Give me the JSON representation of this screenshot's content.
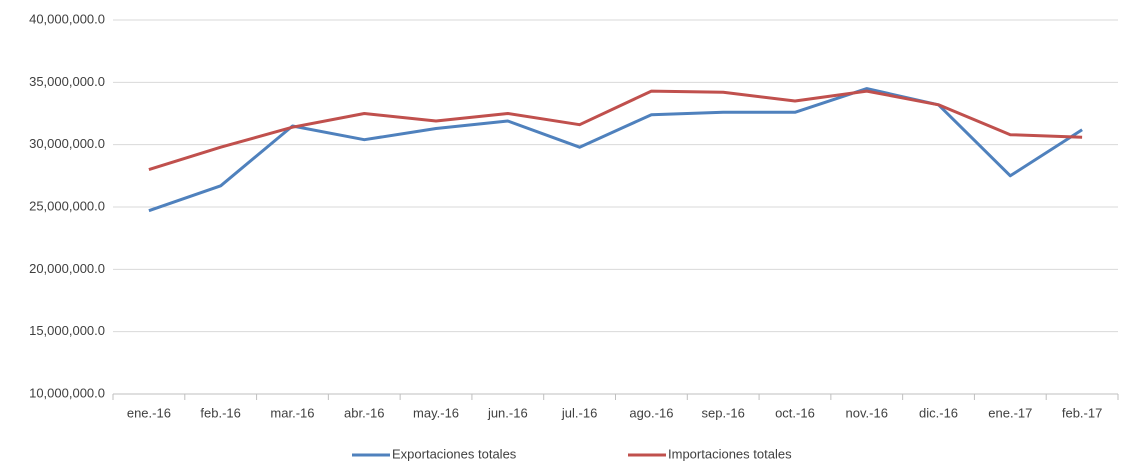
{
  "chart_data": {
    "type": "line",
    "categories": [
      "ene.-16",
      "feb.-16",
      "mar.-16",
      "abr.-16",
      "may.-16",
      "jun.-16",
      "jul.-16",
      "ago.-16",
      "sep.-16",
      "oct.-16",
      "nov.-16",
      "dic.-16",
      "ene.-17",
      "feb.-17"
    ],
    "series": [
      {
        "name": "Exportaciones totales",
        "color": "#4f81bd",
        "values": [
          24700000,
          26700000,
          31500000,
          30400000,
          31300000,
          31900000,
          29800000,
          32400000,
          32600000,
          32600000,
          34500000,
          33200000,
          27500000,
          31200000
        ]
      },
      {
        "name": "Importaciones totales",
        "color": "#c0504d",
        "values": [
          28000000,
          29800000,
          31400000,
          32500000,
          31900000,
          32500000,
          31600000,
          34300000,
          34200000,
          33500000,
          34300000,
          33200000,
          30800000,
          30600000
        ]
      }
    ],
    "ylim": [
      10000000,
      40000000
    ],
    "yticks": [
      {
        "value": 10000000,
        "label": "10,000,000.0"
      },
      {
        "value": 15000000,
        "label": "15,000,000.0"
      },
      {
        "value": 20000000,
        "label": "20,000,000.0"
      },
      {
        "value": 25000000,
        "label": "25,000,000.0"
      },
      {
        "value": 30000000,
        "label": "30,000,000.0"
      },
      {
        "value": 35000000,
        "label": "35,000,000.0"
      },
      {
        "value": 40000000,
        "label": "40,000,000.0"
      }
    ],
    "grid": true,
    "legend": "bottom"
  }
}
